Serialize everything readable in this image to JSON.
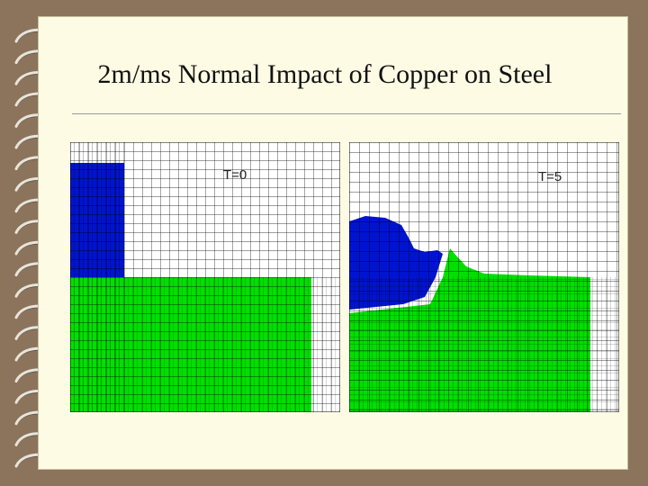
{
  "slide": {
    "title": "2m/ms Normal Impact of Copper on Steel"
  },
  "panels": [
    {
      "label": "T=0",
      "time_step": 0
    },
    {
      "label": "T=5",
      "time_step": 5
    }
  ],
  "materials": {
    "projectile": {
      "name": "Copper",
      "color": "#0014d0"
    },
    "target": {
      "name": "Steel",
      "color": "#00e000"
    }
  },
  "colors": {
    "background": "#8b735c",
    "page": "#fdfbe3",
    "grid": "#000000"
  }
}
